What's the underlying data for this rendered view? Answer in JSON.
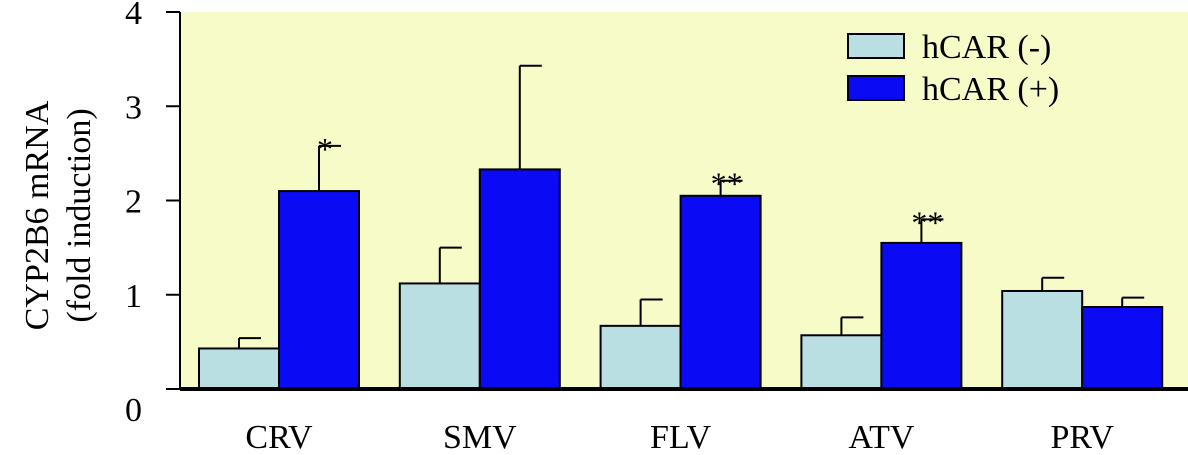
{
  "chart_data": {
    "type": "bar",
    "ylabel_line1": "CYP2B6 mRNA",
    "ylabel_line2": "(fold induction)",
    "xlabel": "",
    "categories": [
      "CRV",
      "SMV",
      "FLV",
      "ATV",
      "PRV"
    ],
    "ylim": [
      0,
      4
    ],
    "yticks": [
      0,
      1,
      2,
      3,
      4
    ],
    "ytick_labels": [
      "0",
      "1",
      "2",
      "3",
      "4"
    ],
    "grid": false,
    "legend_position": "top-right",
    "plot_background": "#f7fbc8",
    "series": [
      {
        "name": "hCAR (-)",
        "color": "#b9dfe2",
        "values": [
          0.43,
          1.12,
          0.67,
          0.57,
          1.04
        ],
        "errors": [
          0.11,
          0.38,
          0.28,
          0.19,
          0.14
        ]
      },
      {
        "name": "hCAR (+)",
        "color": "#0a0af5",
        "values": [
          2.1,
          2.33,
          2.05,
          1.55,
          0.87
        ],
        "errors": [
          0.48,
          1.1,
          0.16,
          0.25,
          0.1
        ]
      }
    ],
    "annotations": [
      {
        "category_index": 0,
        "series_index": 1,
        "text": "*"
      },
      {
        "category_index": 2,
        "series_index": 1,
        "text": "**"
      },
      {
        "category_index": 3,
        "series_index": 1,
        "text": "**"
      }
    ]
  }
}
